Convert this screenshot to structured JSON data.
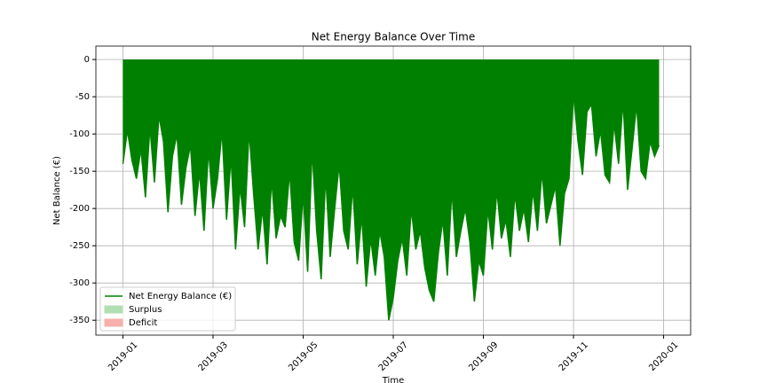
{
  "chart_data": {
    "type": "area-line",
    "title": "Net Energy Balance Over Time",
    "xlabel": "Time",
    "ylabel": "Net Balance (€)",
    "x": [
      0,
      0.1,
      0.2,
      0.3,
      0.4,
      0.5,
      0.6,
      0.7,
      0.8,
      0.9,
      1,
      1.1,
      1.2,
      1.3,
      1.4,
      1.5,
      1.6,
      1.7,
      1.8,
      1.9,
      2,
      2.1,
      2.2,
      2.3,
      2.4,
      2.5,
      2.6,
      2.7,
      2.8,
      2.9,
      3,
      3.1,
      3.2,
      3.3,
      3.4,
      3.5,
      3.6,
      3.7,
      3.8,
      3.9,
      4,
      4.1,
      4.2,
      4.3,
      4.4,
      4.5,
      4.6,
      4.7,
      4.8,
      4.9,
      5,
      5.1,
      5.2,
      5.3,
      5.4,
      5.5,
      5.6,
      5.7,
      5.8,
      5.9,
      6,
      6.1,
      6.2,
      6.3,
      6.4,
      6.5,
      6.6,
      6.7,
      6.8,
      6.9,
      7,
      7.1,
      7.2,
      7.3,
      7.4,
      7.5,
      7.6,
      7.7,
      7.8,
      7.9,
      8,
      8.1,
      8.2,
      8.3,
      8.4,
      8.5,
      8.6,
      8.7,
      8.8,
      8.9,
      9,
      9.1,
      9.2,
      9.3,
      9.4,
      9.5,
      9.6,
      9.7,
      9.8,
      9.9,
      10,
      10.1,
      10.2,
      10.3,
      10.4,
      10.5,
      10.6,
      10.7,
      10.8,
      10.9,
      11,
      11.1,
      11.2,
      11.3,
      11.4,
      11.5,
      11.6,
      11.7,
      11.8,
      11.9
    ],
    "series": [
      {
        "name": "Net Energy Balance (€)",
        "color": "#008000",
        "values": [
          -140,
          -95,
          -135,
          -160,
          -120,
          -185,
          -90,
          -165,
          -75,
          -110,
          -205,
          -130,
          -100,
          -195,
          -145,
          -115,
          -210,
          -150,
          -230,
          -120,
          -200,
          -160,
          -95,
          -215,
          -130,
          -255,
          -170,
          -225,
          -95,
          -180,
          -255,
          -200,
          -275,
          -160,
          -240,
          -210,
          -225,
          -150,
          -245,
          -270,
          -180,
          -285,
          -120,
          -230,
          -295,
          -155,
          -265,
          -200,
          -140,
          -230,
          -255,
          -170,
          -275,
          -210,
          -305,
          -240,
          -290,
          -230,
          -265,
          -350,
          -320,
          -270,
          -240,
          -290,
          -200,
          -255,
          -230,
          -280,
          -310,
          -325,
          -260,
          -215,
          -290,
          -175,
          -265,
          -230,
          -200,
          -245,
          -325,
          -270,
          -290,
          -200,
          -255,
          -175,
          -240,
          -215,
          -265,
          -180,
          -230,
          -200,
          -245,
          -175,
          -230,
          -150,
          -220,
          -195,
          -170,
          -250,
          -180,
          -160,
          -45,
          -110,
          -155,
          -70,
          -60,
          -130,
          -95,
          -155,
          -165,
          -85,
          -140,
          -55,
          -175,
          -120,
          -60,
          -150,
          -160,
          -110,
          -130,
          -115
        ]
      }
    ],
    "legend_patches": [
      {
        "name": "Surplus",
        "color": "#b2dfb2"
      },
      {
        "name": "Deficit",
        "color": "#f7b0ab"
      }
    ],
    "legend": "lower left",
    "xlim": [
      -0.6,
      12.6
    ],
    "xticks": [
      {
        "value": 0,
        "label": "2019-01"
      },
      {
        "value": 2,
        "label": "2019-03"
      },
      {
        "value": 4,
        "label": "2019-05"
      },
      {
        "value": 6,
        "label": "2019-07"
      },
      {
        "value": 8,
        "label": "2019-09"
      },
      {
        "value": 10,
        "label": "2019-11"
      },
      {
        "value": 12,
        "label": "2020-01"
      }
    ],
    "ylim": [
      -370,
      18
    ],
    "yticks": [
      -350,
      -300,
      -250,
      -200,
      -150,
      -100,
      -50,
      0
    ],
    "grid": true
  }
}
